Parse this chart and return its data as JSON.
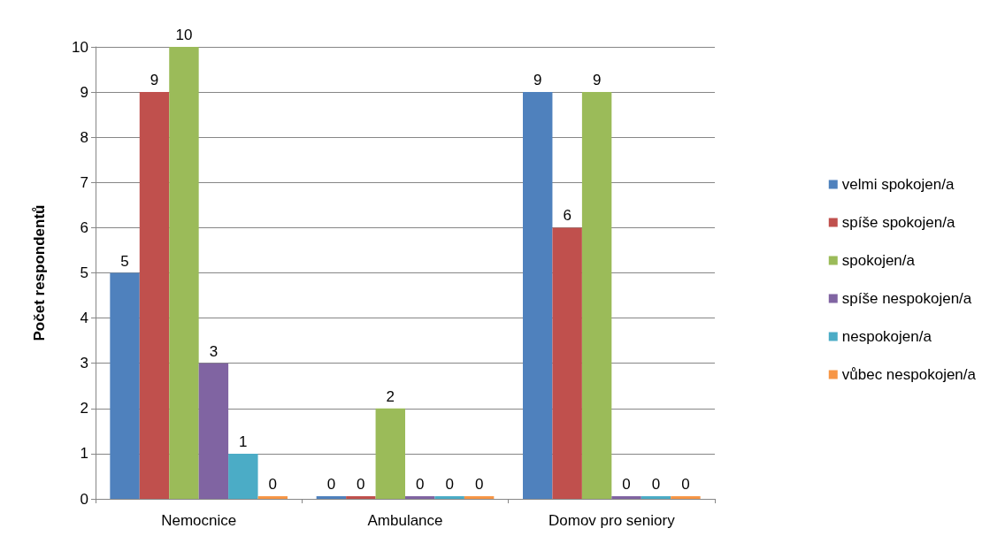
{
  "chart_data": {
    "type": "bar",
    "ylabel": "Počet respondentů",
    "categories": [
      "Nemocnice",
      "Ambulance",
      "Domov pro seniory"
    ],
    "series": [
      {
        "name": "velmi spokojen/a",
        "color": "#4f81bd",
        "values": [
          5,
          0,
          9
        ]
      },
      {
        "name": "spíše spokojen/a",
        "color": "#c0504d",
        "values": [
          9,
          0,
          6
        ]
      },
      {
        "name": "spokojen/a",
        "color": "#9bbb59",
        "values": [
          10,
          2,
          9
        ]
      },
      {
        "name": "spíše nespokojen/a",
        "color": "#8064a2",
        "values": [
          3,
          0,
          0
        ]
      },
      {
        "name": "nespokojen/a",
        "color": "#4bacc6",
        "values": [
          1,
          0,
          0
        ]
      },
      {
        "name": "vůbec nespokojen/a",
        "color": "#f79646",
        "values": [
          0,
          0,
          0
        ]
      }
    ],
    "ylim": [
      0,
      10
    ],
    "yticks": [
      0,
      1,
      2,
      3,
      4,
      5,
      6,
      7,
      8,
      9,
      10
    ],
    "grid": "y",
    "legend": "right",
    "data_labels": true
  }
}
